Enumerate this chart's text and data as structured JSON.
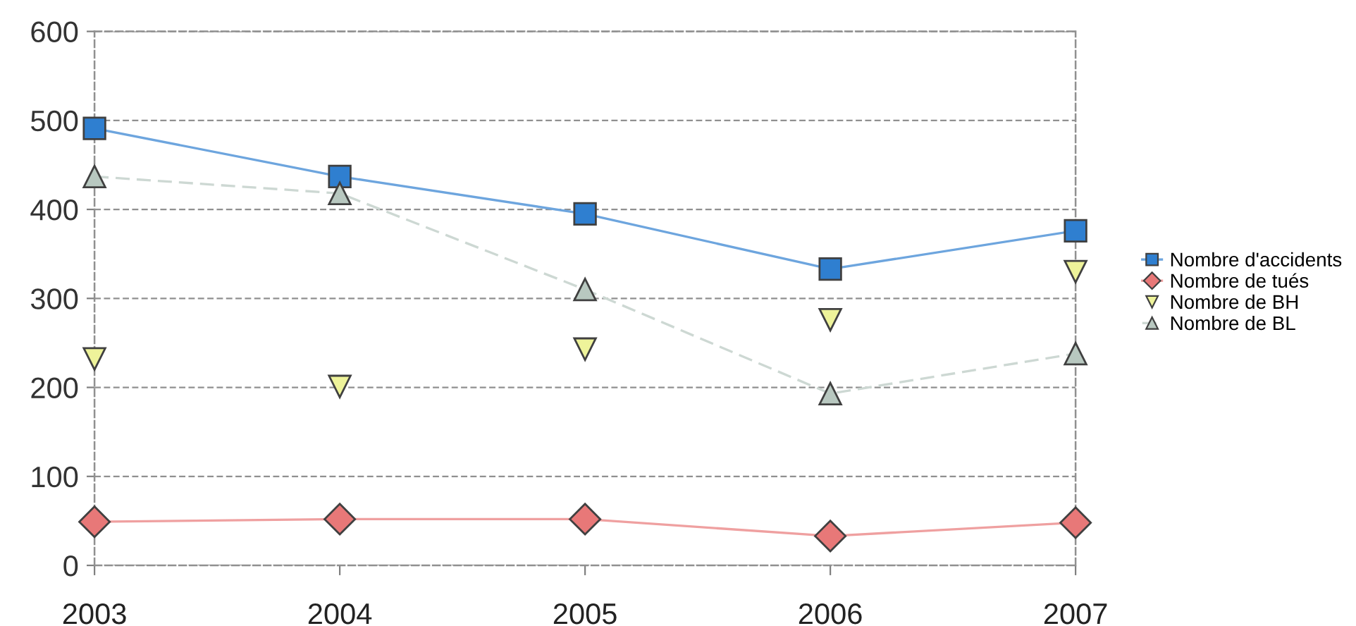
{
  "chart_data": {
    "type": "line",
    "x": [
      2003,
      2004,
      2005,
      2006,
      2007
    ],
    "series": [
      {
        "name": "Nombre d'accidents",
        "color": "#2f7fd0",
        "marker": "square",
        "line_style": "solid",
        "values": [
          491,
          437,
          395,
          333,
          376
        ]
      },
      {
        "name": "Nombre de tués",
        "color": "#e87878",
        "marker": "diamond",
        "line_style": "solid",
        "values": [
          49,
          52,
          52,
          33,
          48
        ]
      },
      {
        "name": "Nombre de BH",
        "type": "scatter",
        "color": "#eef39a",
        "marker": "triangle_down",
        "values": [
          232,
          201,
          243,
          276,
          330
        ]
      },
      {
        "name": "Nombre de BL",
        "color": "#b8c8c0",
        "marker": "triangle",
        "line_style": "dashed",
        "values": [
          437,
          418,
          310,
          193,
          238
        ]
      }
    ],
    "xlim": [
      2003,
      2007
    ],
    "xticks": [
      2003,
      2004,
      2005,
      2006,
      2007
    ],
    "ylim": [
      0,
      600
    ],
    "yticks": [
      0,
      100,
      200,
      300,
      400,
      500,
      600
    ],
    "grid": "y",
    "legend": "right"
  }
}
